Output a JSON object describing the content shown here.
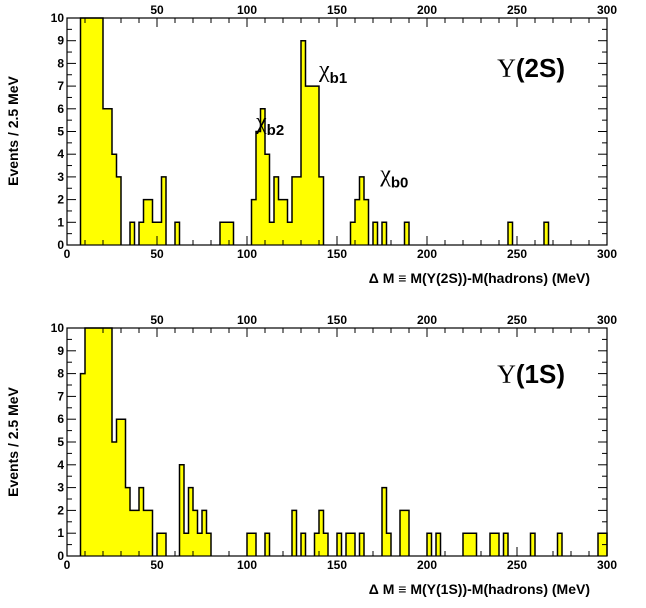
{
  "chart_data": [
    {
      "id": "upsilon2s",
      "type": "histogram",
      "title": "",
      "state_label_symbol": "Υ",
      "state_label_text": "(2S)",
      "xlabel": "Δ M ≡ M(Υ(2S))-M(hadrons) (MeV)",
      "ylabel": "Events / 2.5 MeV",
      "xlim": [
        0,
        300
      ],
      "ylim": [
        0,
        10
      ],
      "bin_width": 2.5,
      "x_ticks": [
        "0",
        "50",
        "100",
        "150",
        "200",
        "250",
        "300"
      ],
      "y_ticks": [
        "0",
        "1",
        "2",
        "3",
        "4",
        "5",
        "6",
        "7",
        "8",
        "9",
        "10"
      ],
      "fill_color": "#ffff00",
      "line_color": "#000000",
      "annotations": [
        {
          "symbol": "χ",
          "sub": "b2",
          "x": 105,
          "y": 5.1
        },
        {
          "symbol": "χ",
          "sub": "b1",
          "x": 140,
          "y": 7.4
        },
        {
          "symbol": "χ",
          "sub": "b0",
          "x": 174,
          "y": 2.8
        }
      ],
      "bins": [
        {
          "x": 7.5,
          "count": 10
        },
        {
          "x": 10,
          "count": 10
        },
        {
          "x": 12.5,
          "count": 10
        },
        {
          "x": 15,
          "count": 10
        },
        {
          "x": 17.5,
          "count": 10
        },
        {
          "x": 20,
          "count": 6
        },
        {
          "x": 22.5,
          "count": 6
        },
        {
          "x": 25,
          "count": 4
        },
        {
          "x": 27.5,
          "count": 3
        },
        {
          "x": 35,
          "count": 1
        },
        {
          "x": 40,
          "count": 1
        },
        {
          "x": 42.5,
          "count": 2
        },
        {
          "x": 45,
          "count": 2
        },
        {
          "x": 47.5,
          "count": 1
        },
        {
          "x": 50,
          "count": 1
        },
        {
          "x": 52.5,
          "count": 3
        },
        {
          "x": 60,
          "count": 1
        },
        {
          "x": 85,
          "count": 1
        },
        {
          "x": 87.5,
          "count": 1
        },
        {
          "x": 90,
          "count": 1
        },
        {
          "x": 102.5,
          "count": 2
        },
        {
          "x": 105,
          "count": 5
        },
        {
          "x": 107.5,
          "count": 6
        },
        {
          "x": 110,
          "count": 4
        },
        {
          "x": 112.5,
          "count": 1
        },
        {
          "x": 115,
          "count": 3
        },
        {
          "x": 117.5,
          "count": 2
        },
        {
          "x": 120,
          "count": 2
        },
        {
          "x": 122.5,
          "count": 1
        },
        {
          "x": 125,
          "count": 3
        },
        {
          "x": 127.5,
          "count": 3
        },
        {
          "x": 130,
          "count": 9
        },
        {
          "x": 132.5,
          "count": 7
        },
        {
          "x": 135,
          "count": 7
        },
        {
          "x": 137.5,
          "count": 7
        },
        {
          "x": 140,
          "count": 3
        },
        {
          "x": 157.5,
          "count": 1
        },
        {
          "x": 160,
          "count": 2
        },
        {
          "x": 162.5,
          "count": 3
        },
        {
          "x": 165,
          "count": 2
        },
        {
          "x": 170,
          "count": 1
        },
        {
          "x": 175,
          "count": 1
        },
        {
          "x": 187.5,
          "count": 1
        },
        {
          "x": 245,
          "count": 1
        },
        {
          "x": 265,
          "count": 1
        }
      ]
    },
    {
      "id": "upsilon1s",
      "type": "histogram",
      "title": "",
      "state_label_symbol": "Υ",
      "state_label_text": "(1S)",
      "xlabel": "Δ M ≡ M(Υ(1S))-M(hadrons) (MeV)",
      "ylabel": "Events / 2.5 MeV",
      "xlim": [
        0,
        300
      ],
      "ylim": [
        0,
        10
      ],
      "bin_width": 2.5,
      "x_ticks": [
        "0",
        "50",
        "100",
        "150",
        "200",
        "250",
        "300"
      ],
      "y_ticks": [
        "0",
        "1",
        "2",
        "3",
        "4",
        "5",
        "6",
        "7",
        "8",
        "9",
        "10"
      ],
      "fill_color": "#ffff00",
      "line_color": "#000000",
      "annotations": [],
      "bins": [
        {
          "x": 7.5,
          "count": 8
        },
        {
          "x": 10,
          "count": 10
        },
        {
          "x": 12.5,
          "count": 10
        },
        {
          "x": 15,
          "count": 10
        },
        {
          "x": 17.5,
          "count": 10
        },
        {
          "x": 20,
          "count": 10
        },
        {
          "x": 22.5,
          "count": 10
        },
        {
          "x": 25,
          "count": 5
        },
        {
          "x": 27.5,
          "count": 6
        },
        {
          "x": 30,
          "count": 6
        },
        {
          "x": 32.5,
          "count": 3
        },
        {
          "x": 35,
          "count": 2
        },
        {
          "x": 37.5,
          "count": 2
        },
        {
          "x": 40,
          "count": 3
        },
        {
          "x": 42.5,
          "count": 2
        },
        {
          "x": 45,
          "count": 2
        },
        {
          "x": 50,
          "count": 1
        },
        {
          "x": 52.5,
          "count": 1
        },
        {
          "x": 62.5,
          "count": 4
        },
        {
          "x": 65,
          "count": 1
        },
        {
          "x": 67.5,
          "count": 3
        },
        {
          "x": 70,
          "count": 2
        },
        {
          "x": 72.5,
          "count": 1
        },
        {
          "x": 75,
          "count": 2
        },
        {
          "x": 77.5,
          "count": 1
        },
        {
          "x": 100,
          "count": 1
        },
        {
          "x": 102.5,
          "count": 1
        },
        {
          "x": 110,
          "count": 1
        },
        {
          "x": 125,
          "count": 2
        },
        {
          "x": 130,
          "count": 1
        },
        {
          "x": 137.5,
          "count": 1
        },
        {
          "x": 140,
          "count": 2
        },
        {
          "x": 142.5,
          "count": 1
        },
        {
          "x": 150,
          "count": 1
        },
        {
          "x": 155,
          "count": 1
        },
        {
          "x": 157.5,
          "count": 1
        },
        {
          "x": 162.5,
          "count": 1
        },
        {
          "x": 175,
          "count": 3
        },
        {
          "x": 177.5,
          "count": 1
        },
        {
          "x": 185,
          "count": 2
        },
        {
          "x": 187.5,
          "count": 2
        },
        {
          "x": 200,
          "count": 1
        },
        {
          "x": 205,
          "count": 1
        },
        {
          "x": 220,
          "count": 1
        },
        {
          "x": 222.5,
          "count": 1
        },
        {
          "x": 225,
          "count": 1
        },
        {
          "x": 235,
          "count": 1
        },
        {
          "x": 237.5,
          "count": 1
        },
        {
          "x": 242.5,
          "count": 1
        },
        {
          "x": 257.5,
          "count": 1
        },
        {
          "x": 272.5,
          "count": 1
        },
        {
          "x": 295,
          "count": 1
        },
        {
          "x": 297.5,
          "count": 1
        }
      ]
    }
  ]
}
